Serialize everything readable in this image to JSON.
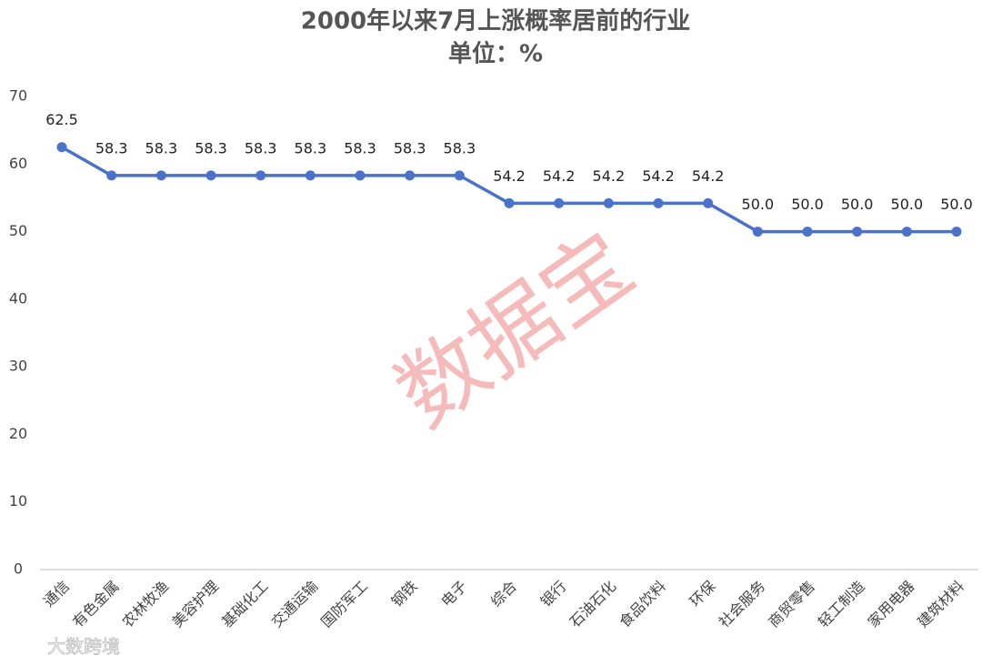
{
  "chart_data": {
    "type": "line",
    "title": "2000年以来7月上涨概率居前的行业",
    "subtitle": "单位：%",
    "categories": [
      "通信",
      "有色金属",
      "农林牧渔",
      "美容护理",
      "基础化工",
      "交通运输",
      "国防军工",
      "钢铁",
      "电子",
      "综合",
      "银行",
      "石油石化",
      "食品饮料",
      "环保",
      "社会服务",
      "商贸零售",
      "轻工制造",
      "家用电器",
      "建筑材料"
    ],
    "values": [
      62.5,
      58.3,
      58.3,
      58.3,
      58.3,
      58.3,
      58.3,
      58.3,
      58.3,
      54.2,
      54.2,
      54.2,
      54.2,
      54.2,
      50.0,
      50.0,
      50.0,
      50.0,
      50.0
    ],
    "value_labels": [
      "62.5",
      "58.3",
      "58.3",
      "58.3",
      "58.3",
      "58.3",
      "58.3",
      "58.3",
      "58.3",
      "54.2",
      "54.2",
      "54.2",
      "54.2",
      "54.2",
      "50.0",
      "50.0",
      "50.0",
      "50.0",
      "50.0"
    ],
    "color": "#4a72c8",
    "ylim": [
      0,
      70
    ],
    "yticks": [
      0,
      10,
      20,
      30,
      40,
      50,
      60,
      70
    ],
    "grid": false,
    "watermark": "数据宝",
    "logo_text": "大数跨境"
  }
}
